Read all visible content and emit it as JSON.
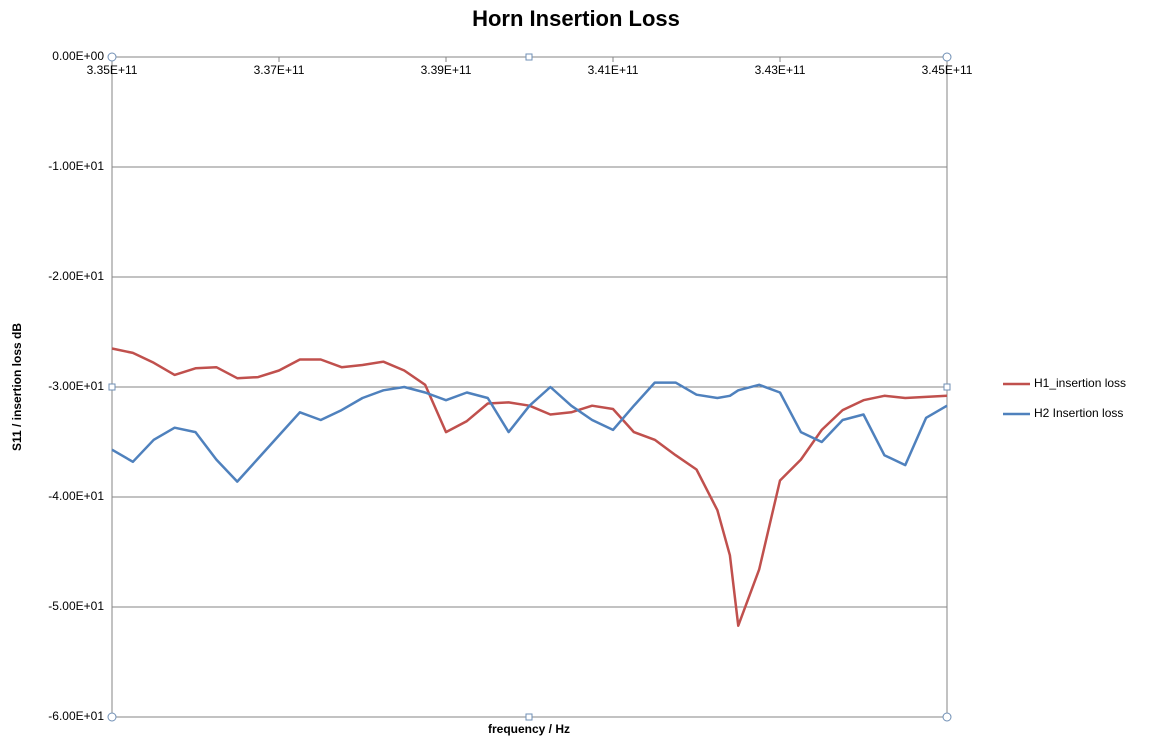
{
  "chart_data": {
    "type": "line",
    "title": "Horn Insertion Loss",
    "xlabel": "frequency / Hz",
    "ylabel": "S11 / insertion loss dB",
    "x": [
      335000000000,
      335250000000,
      335500000000,
      335750000000,
      336000000000,
      336250000000,
      336500000000,
      336750000000,
      337000000000,
      337250000000,
      337500000000,
      337750000000,
      338000000000,
      338250000000,
      338500000000,
      338750000000,
      339000000000,
      339250000000,
      339500000000,
      339750000000,
      340000000000,
      340250000000,
      340500000000,
      340750000000,
      341000000000,
      341250000000,
      341500000000,
      341750000000,
      342000000000,
      342250000000,
      342400000000,
      342500000000,
      342750000000,
      343000000000,
      343250000000,
      343500000000,
      343750000000,
      344000000000,
      344250000000,
      344500000000,
      344750000000,
      345000000000
    ],
    "series": [
      {
        "name": "H1_insertion loss",
        "color": "#c0504d",
        "values": [
          -26.5,
          -26.9,
          -27.8,
          -28.9,
          -28.3,
          -28.2,
          -29.2,
          -29.1,
          -28.5,
          -27.5,
          -27.5,
          -28.2,
          -28.0,
          -27.7,
          -28.5,
          -29.8,
          -34.1,
          -33.1,
          -31.5,
          -31.4,
          -31.7,
          -32.5,
          -32.3,
          -31.7,
          -32.0,
          -34.1,
          -34.8,
          -36.2,
          -37.5,
          -41.2,
          -45.3,
          -51.7,
          -46.6,
          -38.5,
          -36.6,
          -33.9,
          -32.1,
          -31.2,
          -30.8,
          -31.0,
          -30.9,
          -30.8
        ]
      },
      {
        "name": "H2 Insertion loss",
        "color": "#4f81bd",
        "values": [
          -35.7,
          -36.8,
          -34.8,
          -33.7,
          -34.1,
          -36.6,
          -38.6,
          -36.5,
          -34.4,
          -32.3,
          -33.0,
          -32.1,
          -31.0,
          -30.3,
          -30.0,
          -30.5,
          -31.2,
          -30.5,
          -31.0,
          -34.1,
          -31.7,
          -30.0,
          -31.7,
          -33.0,
          -33.9,
          -31.7,
          -29.6,
          -29.6,
          -30.7,
          -31.0,
          -30.8,
          -30.3,
          -29.8,
          -30.5,
          -34.1,
          -35.0,
          -33.0,
          -32.5,
          -36.2,
          -37.1,
          -32.8,
          -31.7
        ]
      }
    ],
    "xlim": [
      335000000000,
      345000000000
    ],
    "xticks": [
      {
        "value": 335000000000,
        "label": "3.35E+11"
      },
      {
        "value": 337000000000,
        "label": "3.37E+11"
      },
      {
        "value": 339000000000,
        "label": "3.39E+11"
      },
      {
        "value": 341000000000,
        "label": "3.41E+11"
      },
      {
        "value": 343000000000,
        "label": "3.43E+11"
      },
      {
        "value": 345000000000,
        "label": "3.45E+11"
      }
    ],
    "ylim": [
      -60,
      0
    ],
    "yticks": [
      {
        "value": 0,
        "label": "0.00E+00"
      },
      {
        "value": -10,
        "label": "-1.00E+01"
      },
      {
        "value": -20,
        "label": "-2.00E+01"
      },
      {
        "value": -30,
        "label": "-3.00E+01"
      },
      {
        "value": -40,
        "label": "-4.00E+01"
      },
      {
        "value": -50,
        "label": "-5.00E+01"
      },
      {
        "value": -60,
        "label": "-6.00E+01"
      }
    ],
    "grid": true,
    "legend": "right"
  }
}
